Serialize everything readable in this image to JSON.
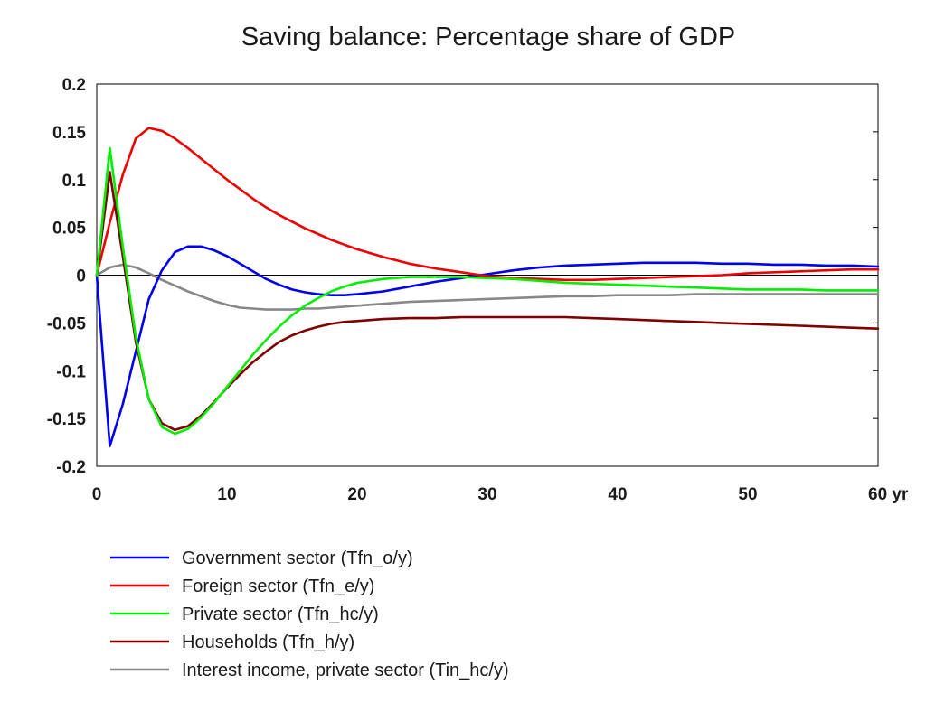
{
  "chart_data": {
    "type": "line",
    "title": "Saving balance: Percentage share of GDP",
    "xlabel": "",
    "ylabel": "",
    "xlim": [
      0,
      60
    ],
    "ylim": [
      -0.2,
      0.2
    ],
    "x_ticks": [
      {
        "value": 0,
        "label": "0"
      },
      {
        "value": 10,
        "label": "10"
      },
      {
        "value": 20,
        "label": "20"
      },
      {
        "value": 30,
        "label": "30"
      },
      {
        "value": 40,
        "label": "40"
      },
      {
        "value": 50,
        "label": "50"
      },
      {
        "value": 60,
        "label": "60 yr"
      }
    ],
    "y_ticks": [
      {
        "value": 0.2,
        "label": "0.2"
      },
      {
        "value": 0.15,
        "label": "0.15"
      },
      {
        "value": 0.1,
        "label": "0.1"
      },
      {
        "value": 0.05,
        "label": "0.05"
      },
      {
        "value": 0,
        "label": "0"
      },
      {
        "value": -0.05,
        "label": "-0.05"
      },
      {
        "value": -0.1,
        "label": "-0.1"
      },
      {
        "value": -0.15,
        "label": "-0.15"
      },
      {
        "value": -0.2,
        "label": "-0.2"
      }
    ],
    "zero_line": true,
    "grid": false,
    "legend_position": "bottom",
    "series": [
      {
        "name": "Government sector (Tfn_o/y)",
        "color": "#0000ee",
        "points": [
          [
            0,
            0
          ],
          [
            1,
            -0.179
          ],
          [
            2,
            -0.135
          ],
          [
            3,
            -0.08
          ],
          [
            4,
            -0.025
          ],
          [
            5,
            0.005
          ],
          [
            6,
            0.024
          ],
          [
            7,
            0.03
          ],
          [
            8,
            0.03
          ],
          [
            9,
            0.026
          ],
          [
            10,
            0.02
          ],
          [
            11,
            0.012
          ],
          [
            12,
            0.004
          ],
          [
            13,
            -0.004
          ],
          [
            14,
            -0.01
          ],
          [
            15,
            -0.015
          ],
          [
            16,
            -0.018
          ],
          [
            17,
            -0.02
          ],
          [
            18,
            -0.021
          ],
          [
            19,
            -0.021
          ],
          [
            20,
            -0.02
          ],
          [
            22,
            -0.017
          ],
          [
            24,
            -0.012
          ],
          [
            26,
            -0.007
          ],
          [
            28,
            -0.003
          ],
          [
            30,
            0.001
          ],
          [
            32,
            0.005
          ],
          [
            34,
            0.008
          ],
          [
            36,
            0.01
          ],
          [
            38,
            0.011
          ],
          [
            40,
            0.012
          ],
          [
            42,
            0.013
          ],
          [
            44,
            0.013
          ],
          [
            46,
            0.013
          ],
          [
            48,
            0.012
          ],
          [
            50,
            0.012
          ],
          [
            52,
            0.011
          ],
          [
            54,
            0.011
          ],
          [
            56,
            0.01
          ],
          [
            58,
            0.01
          ],
          [
            60,
            0.009
          ]
        ]
      },
      {
        "name": "Foreign sector (Tfn_e/y)",
        "color": "#ee0000",
        "points": [
          [
            0,
            0
          ],
          [
            1,
            0.055
          ],
          [
            2,
            0.105
          ],
          [
            3,
            0.143
          ],
          [
            4,
            0.154
          ],
          [
            5,
            0.151
          ],
          [
            6,
            0.143
          ],
          [
            7,
            0.133
          ],
          [
            8,
            0.122
          ],
          [
            9,
            0.111
          ],
          [
            10,
            0.1
          ],
          [
            11,
            0.09
          ],
          [
            12,
            0.08
          ],
          [
            13,
            0.071
          ],
          [
            14,
            0.063
          ],
          [
            15,
            0.056
          ],
          [
            16,
            0.049
          ],
          [
            17,
            0.043
          ],
          [
            18,
            0.037
          ],
          [
            19,
            0.032
          ],
          [
            20,
            0.027
          ],
          [
            22,
            0.019
          ],
          [
            24,
            0.012
          ],
          [
            26,
            0.007
          ],
          [
            28,
            0.003
          ],
          [
            30,
            -0.001
          ],
          [
            32,
            -0.003
          ],
          [
            34,
            -0.004
          ],
          [
            36,
            -0.005
          ],
          [
            38,
            -0.005
          ],
          [
            40,
            -0.004
          ],
          [
            42,
            -0.003
          ],
          [
            44,
            -0.002
          ],
          [
            46,
            -0.001
          ],
          [
            48,
            0
          ],
          [
            50,
            0.002
          ],
          [
            52,
            0.003
          ],
          [
            54,
            0.004
          ],
          [
            56,
            0.005
          ],
          [
            58,
            0.006
          ],
          [
            60,
            0.006
          ]
        ]
      },
      {
        "name": "Private sector (Tfn_hc/y)",
        "color": "#00ee00",
        "points": [
          [
            0,
            0
          ],
          [
            1,
            0.133
          ],
          [
            2,
            0.03
          ],
          [
            3,
            -0.065
          ],
          [
            4,
            -0.13
          ],
          [
            5,
            -0.159
          ],
          [
            6,
            -0.166
          ],
          [
            7,
            -0.161
          ],
          [
            8,
            -0.149
          ],
          [
            9,
            -0.134
          ],
          [
            10,
            -0.117
          ],
          [
            11,
            -0.1
          ],
          [
            12,
            -0.083
          ],
          [
            13,
            -0.068
          ],
          [
            14,
            -0.054
          ],
          [
            15,
            -0.042
          ],
          [
            16,
            -0.032
          ],
          [
            17,
            -0.024
          ],
          [
            18,
            -0.017
          ],
          [
            19,
            -0.012
          ],
          [
            20,
            -0.008
          ],
          [
            22,
            -0.004
          ],
          [
            24,
            -0.002
          ],
          [
            26,
            -0.002
          ],
          [
            28,
            -0.002
          ],
          [
            30,
            -0.003
          ],
          [
            32,
            -0.004
          ],
          [
            34,
            -0.006
          ],
          [
            36,
            -0.008
          ],
          [
            38,
            -0.009
          ],
          [
            40,
            -0.01
          ],
          [
            42,
            -0.011
          ],
          [
            44,
            -0.012
          ],
          [
            46,
            -0.013
          ],
          [
            48,
            -0.014
          ],
          [
            50,
            -0.015
          ],
          [
            52,
            -0.015
          ],
          [
            54,
            -0.015
          ],
          [
            56,
            -0.016
          ],
          [
            58,
            -0.016
          ],
          [
            60,
            -0.016
          ]
        ]
      },
      {
        "name": "Households (Tfn_h/y)",
        "color": "#800000",
        "points": [
          [
            0,
            0
          ],
          [
            1,
            0.108
          ],
          [
            2,
            0.02
          ],
          [
            3,
            -0.07
          ],
          [
            4,
            -0.13
          ],
          [
            5,
            -0.155
          ],
          [
            6,
            -0.162
          ],
          [
            7,
            -0.158
          ],
          [
            8,
            -0.147
          ],
          [
            9,
            -0.133
          ],
          [
            10,
            -0.118
          ],
          [
            11,
            -0.104
          ],
          [
            12,
            -0.091
          ],
          [
            13,
            -0.08
          ],
          [
            14,
            -0.07
          ],
          [
            15,
            -0.063
          ],
          [
            16,
            -0.058
          ],
          [
            17,
            -0.054
          ],
          [
            18,
            -0.051
          ],
          [
            19,
            -0.049
          ],
          [
            20,
            -0.048
          ],
          [
            22,
            -0.046
          ],
          [
            24,
            -0.045
          ],
          [
            26,
            -0.045
          ],
          [
            28,
            -0.044
          ],
          [
            30,
            -0.044
          ],
          [
            32,
            -0.044
          ],
          [
            34,
            -0.044
          ],
          [
            36,
            -0.044
          ],
          [
            38,
            -0.045
          ],
          [
            40,
            -0.046
          ],
          [
            42,
            -0.047
          ],
          [
            44,
            -0.048
          ],
          [
            46,
            -0.049
          ],
          [
            48,
            -0.05
          ],
          [
            50,
            -0.051
          ],
          [
            52,
            -0.052
          ],
          [
            54,
            -0.053
          ],
          [
            56,
            -0.054
          ],
          [
            58,
            -0.055
          ],
          [
            60,
            -0.056
          ]
        ]
      },
      {
        "name": "Interest income, private sector (Tin_hc/y)",
        "color": "#888888",
        "points": [
          [
            0,
            0
          ],
          [
            1,
            0.008
          ],
          [
            2,
            0.011
          ],
          [
            3,
            0.008
          ],
          [
            4,
            0.002
          ],
          [
            5,
            -0.005
          ],
          [
            6,
            -0.011
          ],
          [
            7,
            -0.017
          ],
          [
            8,
            -0.022
          ],
          [
            9,
            -0.027
          ],
          [
            10,
            -0.031
          ],
          [
            11,
            -0.034
          ],
          [
            12,
            -0.035
          ],
          [
            13,
            -0.036
          ],
          [
            14,
            -0.036
          ],
          [
            15,
            -0.036
          ],
          [
            16,
            -0.035
          ],
          [
            17,
            -0.035
          ],
          [
            18,
            -0.034
          ],
          [
            19,
            -0.033
          ],
          [
            20,
            -0.032
          ],
          [
            22,
            -0.03
          ],
          [
            24,
            -0.028
          ],
          [
            26,
            -0.027
          ],
          [
            28,
            -0.026
          ],
          [
            30,
            -0.025
          ],
          [
            32,
            -0.024
          ],
          [
            34,
            -0.023
          ],
          [
            36,
            -0.022
          ],
          [
            38,
            -0.022
          ],
          [
            40,
            -0.021
          ],
          [
            42,
            -0.021
          ],
          [
            44,
            -0.021
          ],
          [
            46,
            -0.02
          ],
          [
            48,
            -0.02
          ],
          [
            50,
            -0.02
          ],
          [
            52,
            -0.02
          ],
          [
            54,
            -0.02
          ],
          [
            56,
            -0.02
          ],
          [
            58,
            -0.02
          ],
          [
            60,
            -0.02
          ]
        ]
      }
    ]
  }
}
